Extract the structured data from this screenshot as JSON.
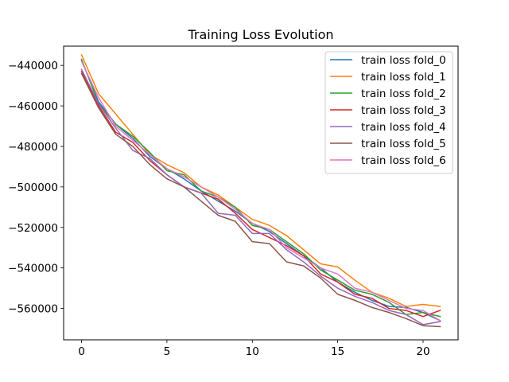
{
  "chart_data": {
    "type": "line",
    "title": "Training Loss Evolution",
    "xlabel": "",
    "ylabel": "",
    "xlim": [
      -1.05,
      22.05
    ],
    "ylim": [
      -575500,
      -430500
    ],
    "x_ticks": [
      0,
      5,
      10,
      15,
      20
    ],
    "y_ticks": [
      -440000,
      -460000,
      -480000,
      -500000,
      -520000,
      -540000,
      -560000
    ],
    "y_tick_labels": [
      "−440000",
      "−460000",
      "−480000",
      "−500000",
      "−520000",
      "−540000",
      "−560000"
    ],
    "grid": false,
    "legend_position": "upper right",
    "x": [
      0,
      1,
      2,
      3,
      4,
      5,
      6,
      7,
      8,
      9,
      10,
      11,
      12,
      13,
      14,
      15,
      16,
      17,
      18,
      19,
      20,
      21
    ],
    "series": [
      {
        "name": "train loss fold_0",
        "color": "#1f77b4",
        "values": [
          -437500,
          -458000,
          -469000,
          -476000,
          -485000,
          -491000,
          -496000,
          -502000,
          -507000,
          -512000,
          -518000,
          -522000,
          -528000,
          -534000,
          -540000,
          -547000,
          -552000,
          -556000,
          -559000,
          -559500,
          -562000,
          -566000
        ]
      },
      {
        "name": "train loss fold_1",
        "color": "#ff7f0e",
        "values": [
          -434800,
          -454000,
          -464000,
          -474000,
          -484000,
          -489000,
          -493000,
          -500000,
          -504000,
          -510000,
          -516000,
          -519000,
          -524000,
          -531000,
          -538000,
          -539500,
          -546000,
          -552000,
          -555000,
          -559000,
          -558000,
          -559000
        ]
      },
      {
        "name": "train loss fold_2",
        "color": "#2ca02c",
        "values": [
          -437000,
          -459000,
          -469000,
          -475000,
          -483000,
          -492000,
          -494000,
          -502000,
          -505000,
          -510000,
          -519000,
          -521000,
          -527000,
          -533000,
          -541000,
          -546000,
          -551000,
          -553000,
          -557000,
          -563000,
          -562000,
          -564000
        ]
      },
      {
        "name": "train loss fold_3",
        "color": "#d62728",
        "values": [
          -443000,
          -460000,
          -473000,
          -478000,
          -487000,
          -494000,
          -500000,
          -503000,
          -506000,
          -513000,
          -521000,
          -525000,
          -529000,
          -534000,
          -543000,
          -547000,
          -553000,
          -555000,
          -560000,
          -561000,
          -564000,
          -561000
        ]
      },
      {
        "name": "train loss fold_4",
        "color": "#9467bd",
        "values": [
          -442000,
          -459000,
          -471000,
          -482000,
          -486000,
          -494000,
          -500000,
          -503000,
          -513000,
          -514000,
          -523000,
          -523000,
          -531000,
          -537000,
          -544000,
          -550000,
          -554000,
          -557000,
          -561000,
          -563000,
          -568000,
          -566500
        ]
      },
      {
        "name": "train loss fold_5",
        "color": "#8c564b",
        "values": [
          -444000,
          -461000,
          -474000,
          -480000,
          -489000,
          -496000,
          -500000,
          -507000,
          -514000,
          -517000,
          -527000,
          -528000,
          -537000,
          -539000,
          -545000,
          -553000,
          -556000,
          -559500,
          -562000,
          -565000,
          -568500,
          -569000
        ]
      },
      {
        "name": "train loss fold_6",
        "color": "#e377c2",
        "values": [
          -438000,
          -456000,
          -470000,
          -477000,
          -484000,
          -491000,
          -495000,
          -500000,
          -505000,
          -511000,
          -518000,
          -521000,
          -530000,
          -535000,
          -540000,
          -543000,
          -550000,
          -552000,
          -556000,
          -560000,
          -561000,
          -566000
        ]
      }
    ]
  }
}
